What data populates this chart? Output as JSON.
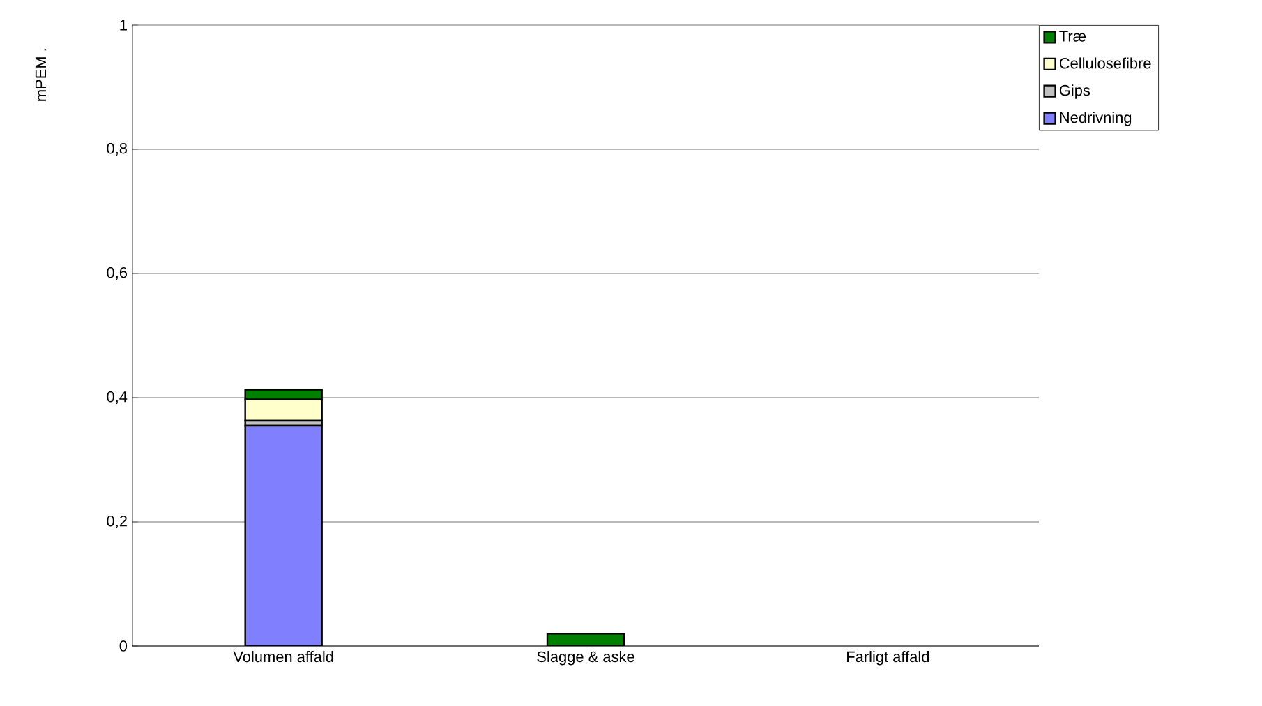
{
  "chart_data": {
    "type": "bar",
    "stacked": true,
    "ylabel": "mPEM .",
    "categories": [
      "Volumen affald",
      "Slagge & aske",
      "Farligt affald"
    ],
    "series": [
      {
        "name": "Nedrivning",
        "color": "#8080ff",
        "values": [
          0.355,
          0,
          0
        ]
      },
      {
        "name": "Gips",
        "color": "#c0c0c0",
        "values": [
          0.008,
          0,
          0
        ]
      },
      {
        "name": "Cellulosefibre",
        "color": "#ffffcc",
        "values": [
          0.034,
          0,
          0
        ]
      },
      {
        "name": "Træ",
        "color": "#008000",
        "values": [
          0.016,
          0.02,
          0
        ]
      }
    ],
    "ylim": [
      0,
      1
    ],
    "yticks": [
      0,
      {
        "value": 0.2,
        "label": "0,2"
      },
      {
        "value": 0.4,
        "label": "0,4"
      },
      {
        "value": 0.6,
        "label": "0,6"
      },
      {
        "value": 0.8,
        "label": "0,8"
      },
      1
    ],
    "grid": "y",
    "legend": "top right"
  }
}
